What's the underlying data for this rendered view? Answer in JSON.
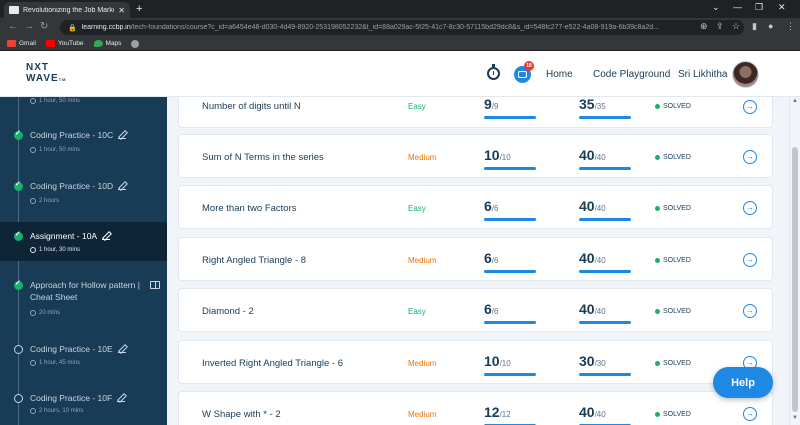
{
  "browser": {
    "tab_title": "Revolutionizing the Job Market |",
    "tab_close": "✕",
    "new_tab": "+",
    "url_host": "learning.ccbp.in",
    "url_path": "/tech-foundations/course?c_id=a6454e48-d030-4d49-8920-253198052232&t_id=88a029ac-5f25-41c7-8c30-57115bd29dc8&s_id=548fc277-e522-4a08-919a-6b39c8a2d...",
    "bookmarks": [
      {
        "label": "Gmail",
        "color": "#ea4335"
      },
      {
        "label": "YouTube",
        "color": "#ff0000"
      },
      {
        "label": "Maps",
        "color": "#34a853"
      }
    ]
  },
  "header": {
    "logo_line1": "NXT",
    "logo_line2": "WAVE",
    "logo_tm": "TM",
    "notification_count": "18",
    "nav": {
      "home": "Home",
      "playground": "Code Playground",
      "user": "Sri Likhitha"
    }
  },
  "sidebar": {
    "items": [
      {
        "title": "",
        "meta": "1 hour, 50 mins",
        "status": "done"
      },
      {
        "title": "Coding Practice - 10C",
        "meta": "1 hour, 50 mins",
        "status": "done"
      },
      {
        "title": "Coding Practice - 10D",
        "meta": "2 hours",
        "status": "done"
      },
      {
        "title": "Assignment - 10A",
        "meta": "1 hour, 30 mins",
        "status": "done",
        "active": true
      },
      {
        "title": "Approach for Hollow pattern | Cheat Sheet",
        "meta": "20 mins",
        "status": "done"
      },
      {
        "title": "Coding Practice - 10E",
        "meta": "1 hour, 45 mins",
        "status": "todo"
      },
      {
        "title": "Coding Practice - 10F",
        "meta": "2 hours, 10 mins",
        "status": "todo"
      }
    ]
  },
  "questions": [
    {
      "title": "Number of digits until N",
      "difficulty": "Easy",
      "tests_passed": "9",
      "tests_total": "/9",
      "score": "35",
      "score_total": "/35",
      "status": "SOLVED"
    },
    {
      "title": "Sum of N Terms in the series",
      "difficulty": "Medium",
      "tests_passed": "10",
      "tests_total": "/10",
      "score": "40",
      "score_total": "/40",
      "status": "SOLVED"
    },
    {
      "title": "More than two Factors",
      "difficulty": "Easy",
      "tests_passed": "6",
      "tests_total": "/6",
      "score": "40",
      "score_total": "/40",
      "status": "SOLVED"
    },
    {
      "title": "Right Angled Triangle - 8",
      "difficulty": "Medium",
      "tests_passed": "6",
      "tests_total": "/6",
      "score": "40",
      "score_total": "/40",
      "status": "SOLVED"
    },
    {
      "title": "Diamond - 2",
      "difficulty": "Easy",
      "tests_passed": "6",
      "tests_total": "/6",
      "score": "40",
      "score_total": "/40",
      "status": "SOLVED"
    },
    {
      "title": "Inverted Right Angled Triangle - 6",
      "difficulty": "Medium",
      "tests_passed": "10",
      "tests_total": "/10",
      "score": "30",
      "score_total": "/30",
      "status": "SOLVED"
    },
    {
      "title": "W Shape with * - 2",
      "difficulty": "Medium",
      "tests_passed": "12",
      "tests_total": "/12",
      "score": "40",
      "score_total": "/40",
      "status": "SOLVED"
    }
  ],
  "colors": {
    "easy": "#17b26a",
    "medium": "#e8770c",
    "accent": "#1e88e5",
    "sidebar": "#183b56"
  },
  "help": {
    "label": "Help"
  }
}
